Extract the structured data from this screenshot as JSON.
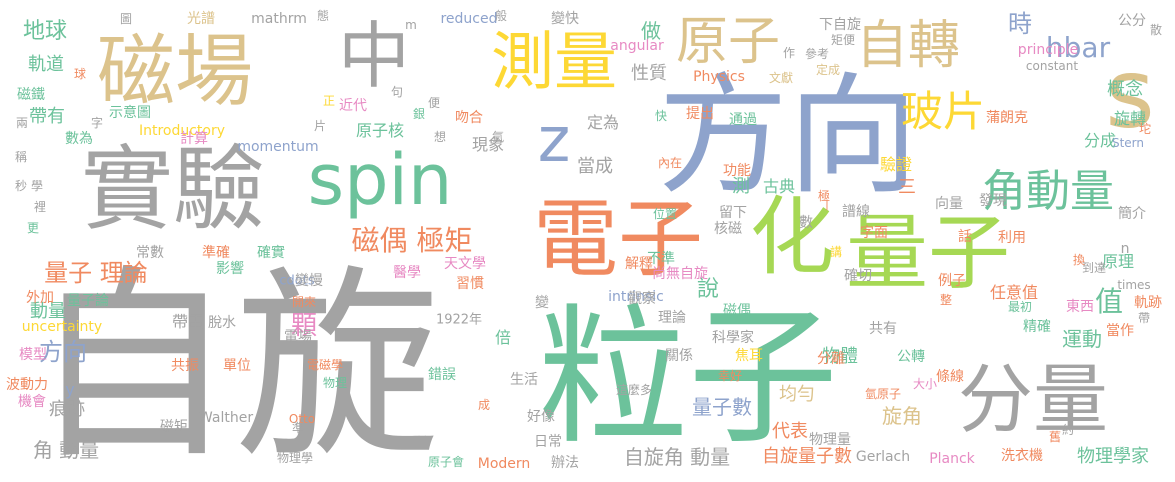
{
  "palette": {
    "gray": "#a3a3a3",
    "blue": "#8ea3cc",
    "green": "#6cc29b",
    "orange": "#f08a60",
    "tan": "#dcc38c",
    "yellow": "#fdd835",
    "lime": "#a6d854",
    "pink": "#e78ac3"
  },
  "words": [
    {
      "text": "自旋",
      "color": "gray"
    },
    {
      "text": "粒子",
      "color": "green"
    },
    {
      "text": "方向",
      "color": "blue"
    },
    {
      "text": "實驗",
      "color": "gray"
    },
    {
      "text": "磁場",
      "color": "tan"
    },
    {
      "text": "spin",
      "color": "green"
    },
    {
      "text": "電子",
      "color": "orange"
    },
    {
      "text": "量子",
      "color": "lime"
    },
    {
      "text": "分量",
      "color": "gray"
    },
    {
      "text": "化",
      "color": "lime"
    },
    {
      "text": "中",
      "color": "gray"
    },
    {
      "text": "測量",
      "color": "yellow"
    },
    {
      "text": "s",
      "color": "tan"
    },
    {
      "text": "z",
      "color": "blue"
    },
    {
      "text": "原子",
      "color": "tan"
    },
    {
      "text": "自轉",
      "color": "tan"
    },
    {
      "text": "角動量",
      "color": "green"
    },
    {
      "text": "玻片",
      "color": "yellow"
    },
    {
      "text": "地球",
      "color": "green"
    },
    {
      "text": "hbar",
      "color": "blue"
    },
    {
      "text": "時",
      "color": "blue"
    },
    {
      "text": "磁偶 極矩",
      "color": "orange"
    },
    {
      "text": "量子 理論",
      "color": "orange"
    },
    {
      "text": "方向",
      "color": "blue"
    },
    {
      "text": "角 動量",
      "color": "gray"
    },
    {
      "text": "自旋角 動量",
      "color": "gray"
    },
    {
      "text": "軌道",
      "color": "green"
    },
    {
      "text": "帶有",
      "color": "green"
    },
    {
      "text": "概念",
      "color": "green"
    },
    {
      "text": "旋轉",
      "color": "green"
    },
    {
      "text": "分成",
      "color": "green"
    },
    {
      "text": "值",
      "color": "green"
    },
    {
      "text": "運動",
      "color": "green"
    },
    {
      "text": "當成",
      "color": "gray"
    },
    {
      "text": "做",
      "color": "green"
    },
    {
      "text": "性質",
      "color": "gray"
    },
    {
      "text": "定為",
      "color": "gray"
    },
    {
      "text": "現象",
      "color": "gray"
    },
    {
      "text": "原子核",
      "color": "green"
    },
    {
      "text": "驗證",
      "color": "yellow"
    },
    {
      "text": "古典",
      "color": "green"
    },
    {
      "text": "測",
      "color": "green"
    },
    {
      "text": "說",
      "color": "green"
    },
    {
      "text": "顆",
      "color": "pink"
    },
    {
      "text": "動量",
      "color": "green"
    },
    {
      "text": "量子數",
      "color": "blue"
    },
    {
      "text": "均勻",
      "color": "tan"
    },
    {
      "text": "代表",
      "color": "orange"
    },
    {
      "text": "旋角",
      "color": "tan"
    },
    {
      "text": "自旋量子數",
      "color": "orange"
    },
    {
      "text": "物理學家",
      "color": "green"
    },
    {
      "text": "物體",
      "color": "green"
    },
    {
      "text": "帶電",
      "color": "gray"
    },
    {
      "text": "倍",
      "color": "green"
    },
    {
      "text": "三",
      "color": "orange"
    },
    {
      "text": "原理",
      "color": "green"
    },
    {
      "text": "任意值",
      "color": "orange"
    },
    {
      "text": "東西",
      "color": "pink"
    },
    {
      "text": "精確",
      "color": "green"
    },
    {
      "text": "當作",
      "color": "orange"
    },
    {
      "text": "條線",
      "color": "orange"
    },
    {
      "text": "公轉",
      "color": "green"
    },
    {
      "text": "分離",
      "color": "orange"
    },
    {
      "text": "共有",
      "color": "gray"
    },
    {
      "text": "y",
      "color": "blue"
    },
    {
      "text": "痕跡",
      "color": "gray"
    },
    {
      "text": "Stern",
      "color": "blue"
    },
    {
      "text": "Gerlach",
      "color": "gray"
    },
    {
      "text": "Planck",
      "color": "pink"
    },
    {
      "text": "Modern",
      "color": "orange"
    },
    {
      "text": "Walther",
      "color": "gray"
    },
    {
      "text": "Otto",
      "color": "orange"
    },
    {
      "text": "1922年",
      "color": "gray"
    },
    {
      "text": "uncertainty",
      "color": "yellow"
    },
    {
      "text": "intrinsic",
      "color": "blue"
    },
    {
      "text": "momentum",
      "color": "blue"
    },
    {
      "text": "Introductory",
      "color": "yellow"
    },
    {
      "text": "angular",
      "color": "pink"
    },
    {
      "text": "Physics",
      "color": "orange"
    },
    {
      "text": "principle",
      "color": "pink"
    },
    {
      "text": "constant",
      "color": "gray"
    },
    {
      "text": "reduced",
      "color": "blue"
    },
    {
      "text": "mathrm",
      "color": "gray"
    },
    {
      "text": "cdots",
      "color": "blue"
    },
    {
      "text": "times",
      "color": "gray"
    },
    {
      "text": "n",
      "color": "gray"
    },
    {
      "text": "m",
      "color": "gray"
    },
    {
      "text": "光譜",
      "color": "tan"
    },
    {
      "text": "變快",
      "color": "gray"
    },
    {
      "text": "下自旋",
      "color": "gray"
    },
    {
      "text": "矩便",
      "color": "gray"
    },
    {
      "text": "公分",
      "color": "gray"
    },
    {
      "text": "蒲朗克",
      "color": "orange"
    },
    {
      "text": "通過",
      "color": "green"
    },
    {
      "text": "參考",
      "color": "gray"
    },
    {
      "text": "定成",
      "color": "tan"
    },
    {
      "text": "文獻",
      "color": "tan"
    },
    {
      "text": "提出",
      "color": "orange"
    },
    {
      "text": "內在",
      "color": "orange"
    },
    {
      "text": "功能",
      "color": "orange"
    },
    {
      "text": "位置",
      "color": "green"
    },
    {
      "text": "留下",
      "color": "gray"
    },
    {
      "text": "核磁",
      "color": "gray"
    },
    {
      "text": "譜線",
      "color": "gray"
    },
    {
      "text": "向量",
      "color": "gray"
    },
    {
      "text": "發現",
      "color": "gray"
    },
    {
      "text": "簡介",
      "color": "gray"
    },
    {
      "text": "利用",
      "color": "orange"
    },
    {
      "text": "到達",
      "color": "gray"
    },
    {
      "text": "字面",
      "color": "orange"
    },
    {
      "text": "確切",
      "color": "gray"
    },
    {
      "text": "例子",
      "color": "orange"
    },
    {
      "text": "最初",
      "color": "green"
    },
    {
      "text": "軌跡",
      "color": "orange"
    },
    {
      "text": "不準",
      "color": "green"
    },
    {
      "text": "解釋",
      "color": "orange"
    },
    {
      "text": "尚無自旋",
      "color": "pink"
    },
    {
      "text": "習慣",
      "color": "orange"
    },
    {
      "text": "醫學",
      "color": "pink"
    },
    {
      "text": "天文學",
      "color": "pink"
    },
    {
      "text": "觀察",
      "color": "gray"
    },
    {
      "text": "理論",
      "color": "gray"
    },
    {
      "text": "磁偶",
      "color": "green"
    },
    {
      "text": "科學家",
      "color": "gray"
    },
    {
      "text": "關係",
      "color": "gray"
    },
    {
      "text": "焦耳",
      "color": "yellow"
    },
    {
      "text": "幸好",
      "color": "orange"
    },
    {
      "text": "氫原子",
      "color": "orange"
    },
    {
      "text": "大小",
      "color": "pink"
    },
    {
      "text": "生活",
      "color": "gray"
    },
    {
      "text": "好像",
      "color": "gray"
    },
    {
      "text": "日常",
      "color": "gray"
    },
    {
      "text": "辦法",
      "color": "gray"
    },
    {
      "text": "洗衣機",
      "color": "orange"
    },
    {
      "text": "物理量",
      "color": "gray"
    },
    {
      "text": "原子會",
      "color": "green"
    },
    {
      "text": "物理學",
      "color": "gray"
    },
    {
      "text": "磁矩",
      "color": "gray"
    },
    {
      "text": "共振",
      "color": "orange"
    },
    {
      "text": "單位",
      "color": "orange"
    },
    {
      "text": "電磁學",
      "color": "orange"
    },
    {
      "text": "物理",
      "color": "green"
    },
    {
      "text": "電場",
      "color": "gray"
    },
    {
      "text": "開來",
      "color": "orange"
    },
    {
      "text": "變慢",
      "color": "gray"
    },
    {
      "text": "常數",
      "color": "gray"
    },
    {
      "text": "準確",
      "color": "orange"
    },
    {
      "text": "確實",
      "color": "green"
    },
    {
      "text": "影響",
      "color": "green"
    },
    {
      "text": "脫水",
      "color": "gray"
    },
    {
      "text": "量子論",
      "color": "green"
    },
    {
      "text": "外加",
      "color": "orange"
    },
    {
      "text": "模型",
      "color": "pink"
    },
    {
      "text": "波動力",
      "color": "orange"
    },
    {
      "text": "機會",
      "color": "pink"
    },
    {
      "text": "數為",
      "color": "green"
    },
    {
      "text": "磁鐵",
      "color": "green"
    },
    {
      "text": "示意圖",
      "color": "green"
    },
    {
      "text": "計算",
      "color": "pink"
    },
    {
      "text": "近代",
      "color": "pink"
    },
    {
      "text": "吻合",
      "color": "orange"
    },
    {
      "text": "錯誤",
      "color": "green"
    },
    {
      "text": "這麼多",
      "color": "gray"
    },
    {
      "text": "變",
      "color": "gray"
    },
    {
      "text": "數",
      "color": "gray"
    },
    {
      "text": "講",
      "color": "yellow"
    },
    {
      "text": "極",
      "color": "orange"
    },
    {
      "text": "話",
      "color": "orange"
    },
    {
      "text": "換",
      "color": "orange"
    },
    {
      "text": "整",
      "color": "orange"
    },
    {
      "text": "帶",
      "color": "gray"
    },
    {
      "text": "約",
      "color": "gray"
    },
    {
      "text": "舊",
      "color": "orange"
    },
    {
      "text": "散",
      "color": "gray"
    },
    {
      "text": "坨",
      "color": "orange"
    },
    {
      "text": "氫",
      "color": "gray"
    },
    {
      "text": "想",
      "color": "gray"
    },
    {
      "text": "便",
      "color": "gray"
    },
    {
      "text": "銀",
      "color": "green"
    },
    {
      "text": "句",
      "color": "gray"
    },
    {
      "text": "般",
      "color": "gray"
    },
    {
      "text": "態",
      "color": "gray"
    },
    {
      "text": "圖",
      "color": "gray"
    },
    {
      "text": "作",
      "color": "gray"
    },
    {
      "text": "快",
      "color": "green"
    },
    {
      "text": "正",
      "color": "yellow"
    },
    {
      "text": "片",
      "color": "gray"
    },
    {
      "text": "成",
      "color": "orange"
    },
    {
      "text": "準",
      "color": "gray"
    },
    {
      "text": "球",
      "color": "orange"
    },
    {
      "text": "字",
      "color": "gray"
    },
    {
      "text": "兩",
      "color": "gray"
    },
    {
      "text": "稱",
      "color": "gray"
    },
    {
      "text": "裡",
      "color": "gray"
    },
    {
      "text": "更",
      "color": "green"
    },
    {
      "text": "學",
      "color": "gray"
    },
    {
      "text": "秒",
      "color": "gray"
    },
    {
      "text": "|",
      "color": "orange"
    },
    {
      "text": "z",
      "color": "gray"
    }
  ]
}
